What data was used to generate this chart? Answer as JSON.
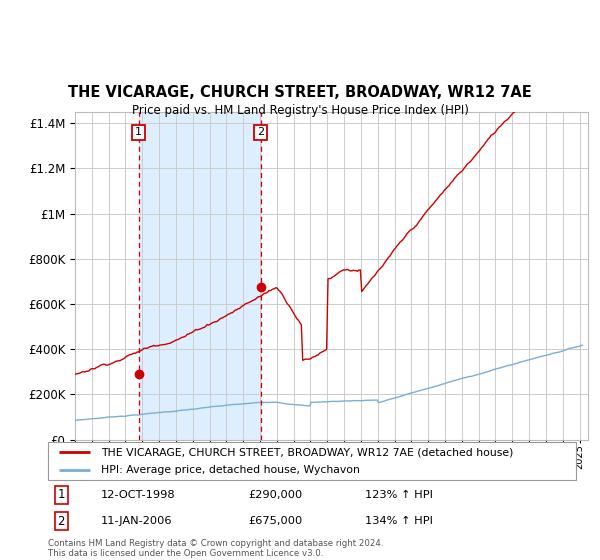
{
  "title": "THE VICARAGE, CHURCH STREET, BROADWAY, WR12 7AE",
  "subtitle": "Price paid vs. HM Land Registry's House Price Index (HPI)",
  "legend_label_red": "THE VICARAGE, CHURCH STREET, BROADWAY, WR12 7AE (detached house)",
  "legend_label_blue": "HPI: Average price, detached house, Wychavon",
  "annotation1_date": "12-OCT-1998",
  "annotation1_price": "£290,000",
  "annotation1_hpi": "123% ↑ HPI",
  "annotation2_date": "11-JAN-2006",
  "annotation2_price": "£675,000",
  "annotation2_hpi": "134% ↑ HPI",
  "footer": "Contains HM Land Registry data © Crown copyright and database right 2024.\nThis data is licensed under the Open Government Licence v3.0.",
  "purchase1_x": 1998.79,
  "purchase1_y": 290000,
  "purchase2_x": 2006.04,
  "purchase2_y": 675000,
  "red_color": "#cc0000",
  "blue_color": "#7aafd4",
  "shade_color": "#ddeeff",
  "vline_color": "#cc0000",
  "grid_color": "#cccccc",
  "ylim": [
    0,
    1450000
  ],
  "xlim": [
    1995,
    2025.5
  ],
  "background_color": "#ffffff"
}
